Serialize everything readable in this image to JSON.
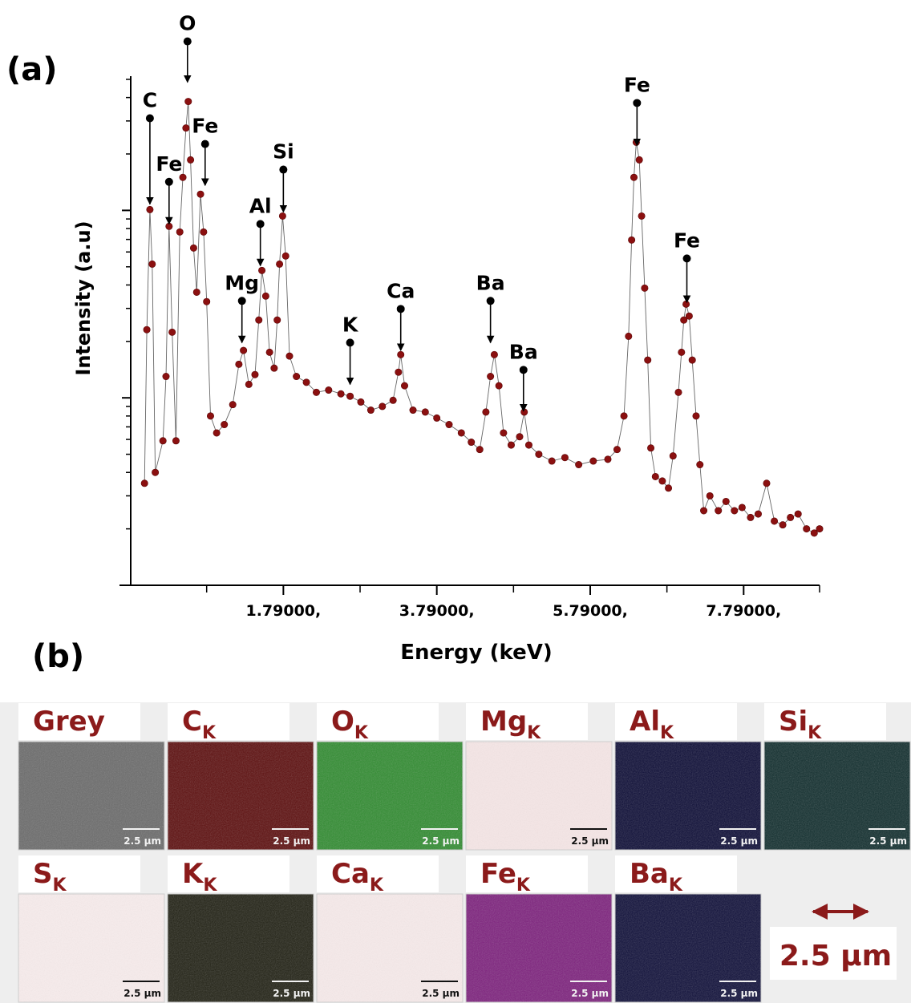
{
  "chart_data": {
    "type": "scatter",
    "panel_label": "(a)",
    "xlabel": "Energy (keV)",
    "ylabel": "Intensity (a.u)",
    "ylog": true,
    "ytick_labels": false,
    "xlim": [
      -0.2,
      8.78
    ],
    "ylim": [
      10,
      5200
    ],
    "xticks": [
      {
        "value": 1.79,
        "label": "1.79000,"
      },
      {
        "value": 3.79,
        "label": "3.79000,"
      },
      {
        "value": 5.79,
        "label": "5.79000,"
      },
      {
        "value": 7.79,
        "label": "7.79000,"
      }
    ],
    "xminorticks": [
      0.79,
      2.79,
      4.79,
      6.79,
      8.78
    ],
    "yticks": [
      100,
      1000
    ],
    "yminorticks": [
      20,
      30,
      40,
      50,
      60,
      70,
      80,
      90,
      200,
      300,
      400,
      500,
      600,
      700,
      800,
      900,
      2000,
      3000,
      4000,
      5000
    ],
    "series": [
      {
        "color": "#8b1010",
        "line_color": "#666666",
        "x": [
          -0.02,
          0.01,
          0.05,
          0.08,
          0.12,
          0.22,
          0.26,
          0.3,
          0.34,
          0.39,
          0.44,
          0.48,
          0.52,
          0.55,
          0.58,
          0.62,
          0.66,
          0.71,
          0.75,
          0.79,
          0.84,
          0.92,
          1.02,
          1.13,
          1.21,
          1.27,
          1.34,
          1.42,
          1.47,
          1.51,
          1.56,
          1.61,
          1.67,
          1.71,
          1.74,
          1.78,
          1.82,
          1.87,
          1.96,
          2.09,
          2.22,
          2.38,
          2.54,
          2.66,
          2.8,
          2.93,
          3.08,
          3.22,
          3.29,
          3.32,
          3.37,
          3.48,
          3.64,
          3.79,
          3.95,
          4.11,
          4.24,
          4.35,
          4.43,
          4.49,
          4.54,
          4.6,
          4.66,
          4.76,
          4.87,
          4.93,
          4.99,
          5.12,
          5.29,
          5.46,
          5.64,
          5.83,
          6.02,
          6.14,
          6.23,
          6.29,
          6.33,
          6.36,
          6.39,
          6.43,
          6.46,
          6.5,
          6.54,
          6.58,
          6.64,
          6.73,
          6.81,
          6.87,
          6.94,
          6.98,
          7.01,
          7.04,
          7.08,
          7.12,
          7.17,
          7.22,
          7.27,
          7.35,
          7.46,
          7.56,
          7.67,
          7.77,
          7.88,
          7.98,
          8.09,
          8.19,
          8.3,
          8.4,
          8.5,
          8.61,
          8.71,
          8.78
        ],
        "values": [
          35,
          231,
          1010,
          517,
          40,
          59,
          130,
          822,
          224,
          59,
          767,
          1500,
          2750,
          3810,
          1860,
          630,
          366,
          1220,
          767,
          326,
          80,
          65,
          72,
          92,
          151,
          179,
          118,
          133,
          260,
          478,
          349,
          175,
          144,
          260,
          517,
          933,
          571,
          167,
          130,
          121,
          107,
          110,
          105,
          102,
          95,
          86,
          90,
          97,
          137,
          170,
          116,
          86,
          84,
          78,
          72,
          65,
          58,
          53,
          84,
          130,
          170,
          116,
          65,
          56,
          62,
          84,
          56,
          50,
          46,
          48,
          44,
          46,
          47,
          53,
          80,
          213,
          695,
          1500,
          2310,
          1860,
          933,
          385,
          159,
          54,
          38,
          36,
          33,
          49,
          107,
          175,
          260,
          316,
          273,
          159,
          80,
          44,
          25,
          30,
          25,
          28,
          25,
          26,
          23,
          24,
          35,
          22,
          21,
          23,
          24,
          20,
          19,
          20
        ]
      }
    ],
    "annotations": [
      {
        "text": "C",
        "xy": [
          0.05,
          1080
        ],
        "xytext": [
          0.05,
          3100
        ]
      },
      {
        "text": "Fe",
        "xy": [
          0.3,
          846
        ],
        "xytext": [
          0.3,
          1420
        ]
      },
      {
        "text": "O",
        "xy": [
          0.54,
          4830
        ],
        "xytext": [
          0.54,
          7970
        ]
      },
      {
        "text": "Fe",
        "xy": [
          0.77,
          1360
        ],
        "xytext": [
          0.77,
          2260
        ]
      },
      {
        "text": "Mg",
        "xy": [
          1.25,
          197
        ],
        "xytext": [
          1.25,
          329
        ]
      },
      {
        "text": "Al",
        "xy": [
          1.49,
          507
        ],
        "xytext": [
          1.49,
          846
        ]
      },
      {
        "text": "Si",
        "xy": [
          1.79,
          980
        ],
        "xytext": [
          1.79,
          1650
        ]
      },
      {
        "text": "K",
        "xy": [
          2.66,
          118
        ],
        "xytext": [
          2.66,
          197
        ]
      },
      {
        "text": "Ca",
        "xy": [
          3.32,
          179
        ],
        "xytext": [
          3.32,
          298
        ]
      },
      {
        "text": "Ba",
        "xy": [
          4.49,
          197
        ],
        "xytext": [
          4.49,
          329
        ]
      },
      {
        "text": "Ba",
        "xy": [
          4.92,
          85
        ],
        "xytext": [
          4.92,
          141
        ]
      },
      {
        "text": "Fe",
        "xy": [
          6.4,
          2220
        ],
        "xytext": [
          6.4,
          3740
        ]
      },
      {
        "text": "Fe",
        "xy": [
          7.05,
          323
        ],
        "xytext": [
          7.05,
          554
        ]
      }
    ]
  },
  "maps": {
    "panel_label": "(b)",
    "label_color": "#8b1a1a",
    "scale_bar": "2.5 µm",
    "tiles": [
      {
        "element": "Grey",
        "color": "#6a6a6a",
        "scale": "2.5 µm"
      },
      {
        "element": "C",
        "subscript": "K",
        "color": "#5c0c0c",
        "scale": "2.5 µm"
      },
      {
        "element": "O",
        "subscript": "K",
        "color": "#2f8c2f",
        "scale": "2.5 µm"
      },
      {
        "element": "Mg",
        "subscript": "K",
        "color": "#f5e6e6",
        "scale": "2.5 µm"
      },
      {
        "element": "Al",
        "subscript": "K",
        "color": "#0b0b35",
        "scale": "2.5 µm"
      },
      {
        "element": "Si",
        "subscript": "K",
        "color": "#0f2c2c",
        "scale": "2.5 µm"
      },
      {
        "element": "S",
        "subscript": "K",
        "color": "#f7ecec",
        "scale": "2.5 µm"
      },
      {
        "element": "K",
        "subscript": "K",
        "color": "#1f1f12",
        "scale": "2.5 µm"
      },
      {
        "element": "Ca",
        "subscript": "K",
        "color": "#f6eaea",
        "scale": "2.5 µm"
      },
      {
        "element": "Fe",
        "subscript": "K",
        "color": "#7d1f7d",
        "scale": "2.5 µm"
      },
      {
        "element": "Ba",
        "subscript": "K",
        "color": "#0d0d38",
        "scale": "2.5 µm"
      }
    ]
  }
}
